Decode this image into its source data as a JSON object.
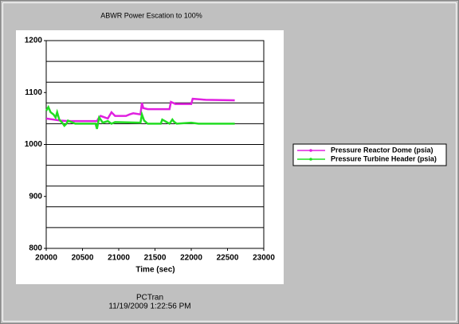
{
  "chart_data": {
    "type": "line",
    "title": "ABWR Power Escation to 100%",
    "xlabel": "Time (sec)",
    "xlim": [
      20000,
      23000
    ],
    "xticks": [
      20000,
      20500,
      21000,
      21500,
      22000,
      22500,
      23000
    ],
    "ylim": [
      800,
      1200
    ],
    "yticks": [
      800,
      900,
      1000,
      1100,
      1200
    ],
    "ygrid": [
      840,
      880,
      920,
      960,
      1000,
      1040,
      1080,
      1120,
      1160
    ],
    "series": [
      {
        "name": "Pressure Reactor Dome (psia)",
        "color": "#e020e0",
        "x": [
          20000,
          20100,
          20200,
          20300,
          20700,
          20720,
          20750,
          20850,
          20900,
          20950,
          21100,
          21150,
          21200,
          21300,
          21320,
          21340,
          21400,
          21700,
          21720,
          21750,
          21780,
          22000,
          22020,
          22200,
          22600
        ],
        "values": [
          1050,
          1048,
          1046,
          1045,
          1045,
          1050,
          1055,
          1050,
          1062,
          1055,
          1055,
          1058,
          1060,
          1058,
          1080,
          1070,
          1068,
          1068,
          1082,
          1080,
          1078,
          1078,
          1088,
          1086,
          1085
        ]
      },
      {
        "name": "Pressure Turbine Header (psia)",
        "color": "#22dd22",
        "x": [
          20000,
          20030,
          20060,
          20100,
          20130,
          20150,
          20180,
          20220,
          20250,
          20280,
          20300,
          20400,
          20680,
          20700,
          20730,
          20780,
          20850,
          20900,
          20950,
          21300,
          21320,
          21350,
          21400,
          21580,
          21600,
          21650,
          21700,
          21740,
          21760,
          21800,
          22000,
          22100,
          22600
        ],
        "values": [
          1065,
          1072,
          1062,
          1058,
          1052,
          1062,
          1048,
          1042,
          1036,
          1040,
          1046,
          1040,
          1040,
          1030,
          1052,
          1042,
          1045,
          1040,
          1043,
          1042,
          1058,
          1046,
          1040,
          1040,
          1048,
          1044,
          1040,
          1048,
          1044,
          1040,
          1042,
          1040,
          1040
        ]
      }
    ],
    "footer": [
      "PCTran",
      "11/19/2009 1:22:56 PM"
    ]
  }
}
